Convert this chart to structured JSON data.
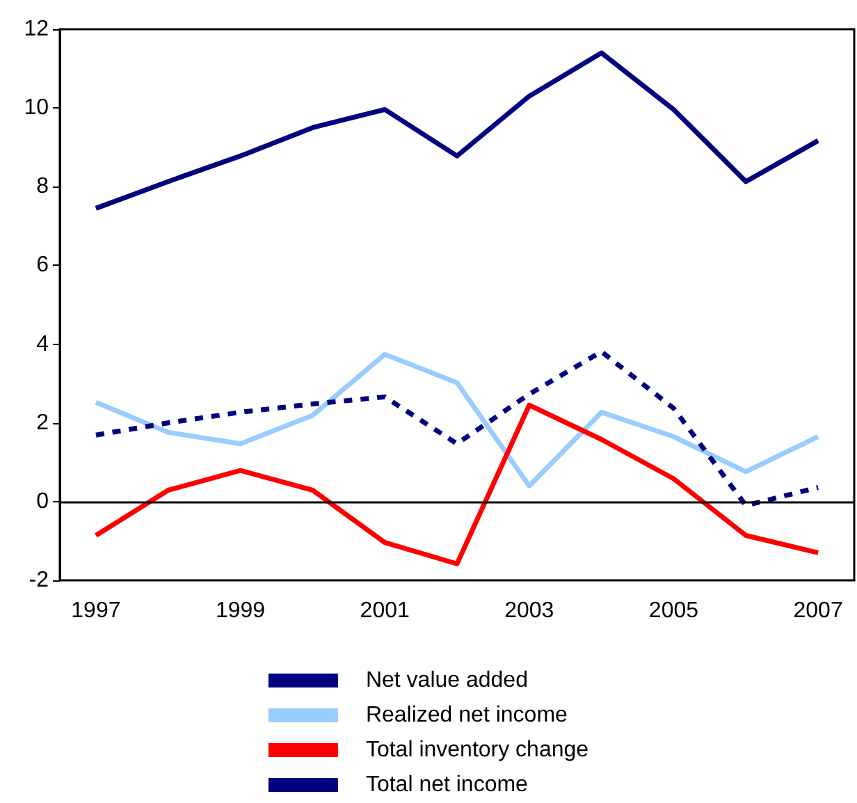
{
  "chart_data": {
    "type": "line",
    "categories": [
      "1997",
      null,
      "1999",
      null,
      "2001",
      null,
      "2003",
      null,
      "2005",
      null,
      "2007"
    ],
    "ylim": [
      -2,
      12
    ],
    "yticks": [
      -2,
      0,
      2,
      4,
      6,
      8,
      10,
      12
    ],
    "grid": false,
    "legend": "bottom",
    "marker": "none",
    "ref_lines": [
      {
        "axis": "y",
        "value": 0,
        "color": "#000000"
      }
    ],
    "series": [
      {
        "name": "Net value added",
        "color": "#000080",
        "line_style": "solid",
        "values": [
          7.45,
          8.13,
          8.78,
          9.5,
          9.96,
          8.78,
          10.3,
          11.4,
          9.96,
          8.13,
          9.17
        ]
      },
      {
        "name": "Realized net income",
        "color": "#99ccff",
        "line_style": "solid",
        "values": [
          2.52,
          1.76,
          1.47,
          2.19,
          3.74,
          3.02,
          0.4,
          2.27,
          1.65,
          0.76,
          1.65
        ]
      },
      {
        "name": "Total inventory change",
        "color": "#ff0000",
        "line_style": "solid",
        "values": [
          -0.86,
          0.29,
          0.79,
          0.29,
          -1.04,
          -1.58,
          2.45,
          1.58,
          0.58,
          -0.86,
          -1.3
        ]
      },
      {
        "name": "Total net income",
        "color": "#000080",
        "line_style": "dashed",
        "values": [
          1.69,
          2.0,
          2.27,
          2.48,
          2.66,
          1.47,
          2.73,
          3.81,
          2.37,
          -0.1,
          0.36
        ]
      }
    ]
  }
}
